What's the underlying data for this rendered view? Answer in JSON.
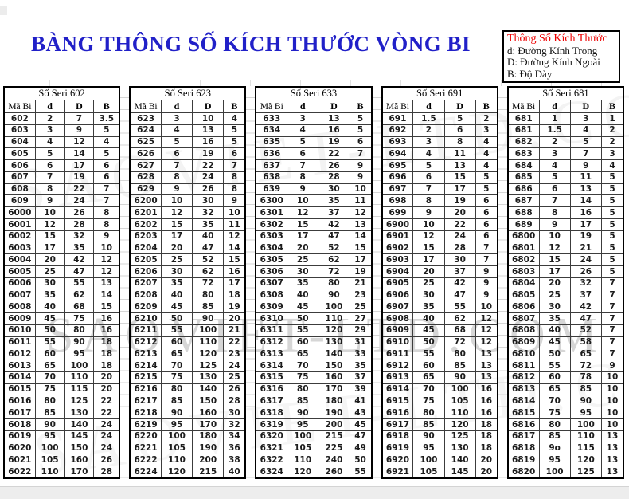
{
  "page": {
    "title": "BÀNG THÔNG SỐ KÍCH THƯỚC VÒNG BI",
    "title_color": "#2120c8"
  },
  "legend": {
    "title": "Thông Số Kích Thước",
    "title_color": "#ee0000",
    "items": [
      "d: Đường Kính Trong",
      "D: Đường Kính Ngoài",
      "B:  Độ Dày"
    ]
  },
  "watermark": {
    "big": "SAOVIET-LTD.COM"
  },
  "columns": [
    "Mã Bi",
    "d",
    "D",
    "B"
  ],
  "tables": [
    {
      "series": "Số Seri 602",
      "rows": [
        [
          "602",
          "2",
          "7",
          "3.5"
        ],
        [
          "603",
          "3",
          "9",
          "5"
        ],
        [
          "604",
          "4",
          "12",
          "4"
        ],
        [
          "605",
          "5",
          "14",
          "5"
        ],
        [
          "606",
          "6",
          "17",
          "6"
        ],
        [
          "607",
          "7",
          "19",
          "6"
        ],
        [
          "608",
          "8",
          "22",
          "7"
        ],
        [
          "609",
          "9",
          "24",
          "7"
        ],
        [
          "6000",
          "10",
          "26",
          "8"
        ],
        [
          "6001",
          "12",
          "28",
          "8"
        ],
        [
          "6002",
          "15",
          "32",
          "9"
        ],
        [
          "6003",
          "17",
          "35",
          "10"
        ],
        [
          "6004",
          "20",
          "42",
          "12"
        ],
        [
          "6005",
          "25",
          "47",
          "12"
        ],
        [
          "6006",
          "30",
          "55",
          "13"
        ],
        [
          "6007",
          "35",
          "62",
          "14"
        ],
        [
          "6008",
          "40",
          "68",
          "15"
        ],
        [
          "6009",
          "45",
          "75",
          "16"
        ],
        [
          "6010",
          "50",
          "80",
          "16"
        ],
        [
          "6011",
          "55",
          "90",
          "18"
        ],
        [
          "6012",
          "60",
          "95",
          "18"
        ],
        [
          "6013",
          "65",
          "100",
          "18"
        ],
        [
          "6014",
          "70",
          "110",
          "20"
        ],
        [
          "6015",
          "75",
          "115",
          "20"
        ],
        [
          "6016",
          "80",
          "125",
          "22"
        ],
        [
          "6017",
          "85",
          "130",
          "22"
        ],
        [
          "6018",
          "90",
          "140",
          "24"
        ],
        [
          "6019",
          "95",
          "145",
          "24"
        ],
        [
          "6020",
          "100",
          "150",
          "24"
        ],
        [
          "6021",
          "105",
          "160",
          "26"
        ],
        [
          "6022",
          "110",
          "170",
          "28"
        ]
      ]
    },
    {
      "series": "Số Seri 623",
      "rows": [
        [
          "623",
          "3",
          "10",
          "4"
        ],
        [
          "624",
          "4",
          "13",
          "5"
        ],
        [
          "625",
          "5",
          "16",
          "5"
        ],
        [
          "626",
          "6",
          "19",
          "6"
        ],
        [
          "627",
          "7",
          "22",
          "7"
        ],
        [
          "628",
          "8",
          "24",
          "8"
        ],
        [
          "629",
          "9",
          "26",
          "8"
        ],
        [
          "6200",
          "10",
          "30",
          "9"
        ],
        [
          "6201",
          "12",
          "32",
          "10"
        ],
        [
          "6202",
          "15",
          "35",
          "11"
        ],
        [
          "6203",
          "17",
          "40",
          "12"
        ],
        [
          "6204",
          "20",
          "47",
          "14"
        ],
        [
          "6205",
          "25",
          "52",
          "15"
        ],
        [
          "6206",
          "30",
          "62",
          "16"
        ],
        [
          "6207",
          "35",
          "72",
          "17"
        ],
        [
          "6208",
          "40",
          "80",
          "18"
        ],
        [
          "6209",
          "45",
          "85",
          "19"
        ],
        [
          "6210",
          "50",
          "90",
          "20"
        ],
        [
          "6211",
          "55",
          "100",
          "21"
        ],
        [
          "6212",
          "60",
          "110",
          "22"
        ],
        [
          "6213",
          "65",
          "120",
          "23"
        ],
        [
          "6214",
          "70",
          "125",
          "24"
        ],
        [
          "6215",
          "75",
          "130",
          "25"
        ],
        [
          "6216",
          "80",
          "140",
          "26"
        ],
        [
          "6217",
          "85",
          "150",
          "28"
        ],
        [
          "6218",
          "90",
          "160",
          "30"
        ],
        [
          "6219",
          "95",
          "170",
          "32"
        ],
        [
          "6220",
          "100",
          "180",
          "34"
        ],
        [
          "6221",
          "105",
          "190",
          "36"
        ],
        [
          "6222",
          "110",
          "200",
          "38"
        ],
        [
          "6224",
          "120",
          "215",
          "40"
        ]
      ]
    },
    {
      "series": "Số Seri 633",
      "rows": [
        [
          "633",
          "3",
          "13",
          "5"
        ],
        [
          "634",
          "4",
          "16",
          "5"
        ],
        [
          "635",
          "5",
          "19",
          "6"
        ],
        [
          "636",
          "6",
          "22",
          "7"
        ],
        [
          "637",
          "7",
          "26",
          "9"
        ],
        [
          "638",
          "8",
          "28",
          "9"
        ],
        [
          "639",
          "9",
          "30",
          "10"
        ],
        [
          "6300",
          "10",
          "35",
          "11"
        ],
        [
          "6301",
          "12",
          "37",
          "12"
        ],
        [
          "6302",
          "15",
          "42",
          "13"
        ],
        [
          "6303",
          "17",
          "47",
          "14"
        ],
        [
          "6304",
          "20",
          "52",
          "15"
        ],
        [
          "6305",
          "25",
          "62",
          "17"
        ],
        [
          "6306",
          "30",
          "72",
          "19"
        ],
        [
          "6307",
          "35",
          "80",
          "21"
        ],
        [
          "6308",
          "40",
          "90",
          "23"
        ],
        [
          "6309",
          "45",
          "100",
          "25"
        ],
        [
          "6310",
          "50",
          "110",
          "27"
        ],
        [
          "6311",
          "55",
          "120",
          "29"
        ],
        [
          "6312",
          "60",
          "130",
          "31"
        ],
        [
          "6313",
          "65",
          "140",
          "33"
        ],
        [
          "6314",
          "70",
          "150",
          "35"
        ],
        [
          "6315",
          "75",
          "160",
          "37"
        ],
        [
          "6316",
          "80",
          "170",
          "39"
        ],
        [
          "6317",
          "85",
          "180",
          "41"
        ],
        [
          "6318",
          "90",
          "190",
          "43"
        ],
        [
          "6319",
          "95",
          "200",
          "45"
        ],
        [
          "6320",
          "100",
          "215",
          "47"
        ],
        [
          "6321",
          "105",
          "225",
          "49"
        ],
        [
          "6322",
          "110",
          "240",
          "50"
        ],
        [
          "6324",
          "120",
          "260",
          "55"
        ]
      ]
    },
    {
      "series": "Số Seri 691",
      "rows": [
        [
          "691",
          "1.5",
          "5",
          "2"
        ],
        [
          "692",
          "2",
          "6",
          "3"
        ],
        [
          "693",
          "3",
          "8",
          "4"
        ],
        [
          "694",
          "4",
          "11",
          "4"
        ],
        [
          "695",
          "5",
          "13",
          "4"
        ],
        [
          "696",
          "6",
          "15",
          "5"
        ],
        [
          "697",
          "7",
          "17",
          "5"
        ],
        [
          "698",
          "8",
          "19",
          "6"
        ],
        [
          "699",
          "9",
          "20",
          "6"
        ],
        [
          "6900",
          "10",
          "22",
          "6"
        ],
        [
          "6901",
          "12",
          "24",
          "6"
        ],
        [
          "6902",
          "15",
          "28",
          "7"
        ],
        [
          "6903",
          "17",
          "30",
          "7"
        ],
        [
          "6904",
          "20",
          "37",
          "9"
        ],
        [
          "6905",
          "25",
          "42",
          "9"
        ],
        [
          "6906",
          "30",
          "47",
          "9"
        ],
        [
          "6907",
          "35",
          "55",
          "10"
        ],
        [
          "6908",
          "40",
          "62",
          "12"
        ],
        [
          "6909",
          "45",
          "68",
          "12"
        ],
        [
          "6910",
          "50",
          "72",
          "12"
        ],
        [
          "6911",
          "55",
          "80",
          "13"
        ],
        [
          "6912",
          "60",
          "85",
          "13"
        ],
        [
          "6913",
          "65",
          "90",
          "13"
        ],
        [
          "6914",
          "70",
          "100",
          "16"
        ],
        [
          "6915",
          "75",
          "105",
          "16"
        ],
        [
          "6916",
          "80",
          "110",
          "16"
        ],
        [
          "6917",
          "85",
          "120",
          "18"
        ],
        [
          "6918",
          "90",
          "125",
          "18"
        ],
        [
          "6919",
          "95",
          "130",
          "18"
        ],
        [
          "6920",
          "100",
          "140",
          "20"
        ],
        [
          "6921",
          "105",
          "145",
          "20"
        ]
      ]
    },
    {
      "series": "Số Seri 681",
      "rows": [
        [
          "681",
          "1",
          "3",
          "1"
        ],
        [
          "681",
          "1.5",
          "4",
          "2"
        ],
        [
          "682",
          "2",
          "5",
          "2"
        ],
        [
          "683",
          "3",
          "7",
          "3"
        ],
        [
          "684",
          "4",
          "9",
          "4"
        ],
        [
          "685",
          "5",
          "11",
          "5"
        ],
        [
          "686",
          "6",
          "13",
          "5"
        ],
        [
          "687",
          "7",
          "14",
          "5"
        ],
        [
          "688",
          "8",
          "16",
          "5"
        ],
        [
          "689",
          "9",
          "17",
          "5"
        ],
        [
          "6800",
          "10",
          "19",
          "5"
        ],
        [
          "6801",
          "12",
          "21",
          "5"
        ],
        [
          "6802",
          "15",
          "24",
          "5"
        ],
        [
          "6803",
          "17",
          "26",
          "5"
        ],
        [
          "6804",
          "20",
          "32",
          "7"
        ],
        [
          "6805",
          "25",
          "37",
          "7"
        ],
        [
          "6806",
          "30",
          "42",
          "7"
        ],
        [
          "6807",
          "35",
          "47",
          "7"
        ],
        [
          "6808",
          "40",
          "52",
          "7"
        ],
        [
          "6809",
          "45",
          "58",
          "7"
        ],
        [
          "6810",
          "50",
          "65",
          "7"
        ],
        [
          "6811",
          "55",
          "72",
          "9"
        ],
        [
          "6812",
          "60",
          "78",
          "10"
        ],
        [
          "6813",
          "65",
          "85",
          "10"
        ],
        [
          "6814",
          "70",
          "90",
          "10"
        ],
        [
          "6815",
          "75",
          "95",
          "10"
        ],
        [
          "6816",
          "80",
          "100",
          "10"
        ],
        [
          "6817",
          "85",
          "110",
          "13"
        ],
        [
          "6818",
          "9o",
          "115",
          "13"
        ],
        [
          "6819",
          "95",
          "120",
          "13"
        ],
        [
          "6820",
          "100",
          "125",
          "13"
        ]
      ]
    }
  ]
}
